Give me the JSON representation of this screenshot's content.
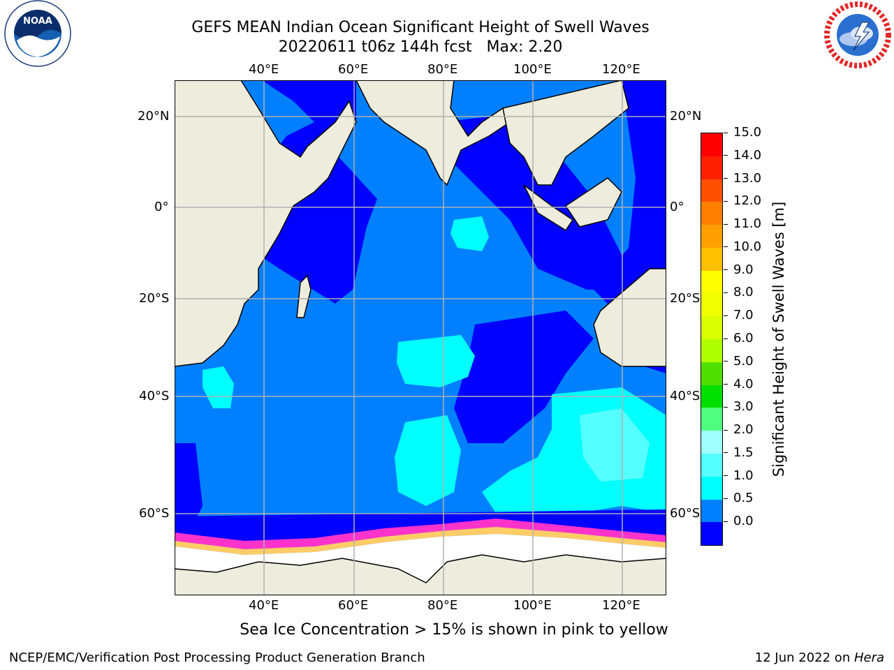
{
  "title": {
    "line1": "GEFS MEAN Indian Ocean Significant Height of Swell Waves",
    "line2": "20220611 t06z 144h fcst   Max: 2.20"
  },
  "map": {
    "lon_labels": [
      "40°E",
      "60°E",
      "80°E",
      "100°E",
      "120°E"
    ],
    "lat_labels": [
      "20°N",
      "0°",
      "20°S",
      "40°S",
      "60°S"
    ],
    "colors": {
      "land": "#eeecdc",
      "ice": "#ffffff",
      "ocean_0_05": "#0000ff",
      "ocean_05_10": "#0080ff",
      "ocean_10_15": "#00ffff",
      "ocean_15_20": "#55ffff",
      "sea_ice_pink": "#ff33cc",
      "sea_ice_yellow": "#ffcc66",
      "grid": "#b0b0b0"
    }
  },
  "colorbar": {
    "label": "Significant Height of Swell Waves [m]",
    "ticks": [
      "15.0",
      "14.0",
      "13.0",
      "12.0",
      "11.0",
      "10.0",
      "9.0",
      "8.0",
      "7.0",
      "6.0",
      "5.0",
      "4.0",
      "3.0",
      "2.0",
      "1.5",
      "1.0",
      "0.5",
      "0.0"
    ],
    "colors_top_to_bottom": [
      "#ff0000",
      "#ff2000",
      "#ff5000",
      "#ff8000",
      "#ffa000",
      "#ffc000",
      "#ffff00",
      "#f0ff00",
      "#d8ff00",
      "#b0ff00",
      "#50e000",
      "#00e000",
      "#50ff80",
      "#a0ffff",
      "#55ffff",
      "#00ffff",
      "#0080ff",
      "#0000ff"
    ]
  },
  "caption": "Sea Ice Concentration > 15% is shown in pink to yellow",
  "footer": {
    "left": "NCEP/EMC/Verification Post Processing Product Generation Branch",
    "date": "12 Jun 2022 on ",
    "system": "Hera"
  },
  "logos": {
    "noaa": "NOAA",
    "nws": "NATIONAL WEATHER SERVICE"
  }
}
